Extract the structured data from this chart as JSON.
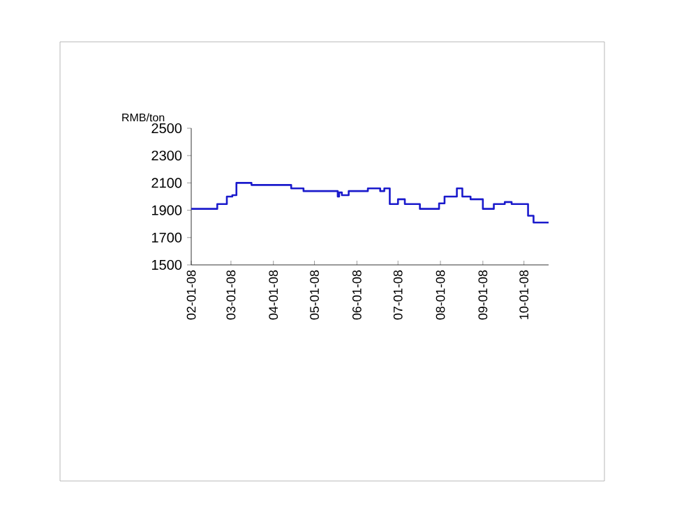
{
  "chart_data": {
    "type": "step",
    "ylabel": "RMB/ton",
    "x": [
      "2008-02-01",
      "2008-02-20",
      "2008-02-27",
      "2008-03-02",
      "2008-03-05",
      "2008-03-16",
      "2008-04-14",
      "2008-04-23",
      "2008-05-18",
      "2008-05-19",
      "2008-05-21",
      "2008-05-26",
      "2008-06-09",
      "2008-06-18",
      "2008-06-21",
      "2008-06-25",
      "2008-07-01",
      "2008-07-06",
      "2008-07-17",
      "2008-07-31",
      "2008-08-04",
      "2008-08-13",
      "2008-08-17",
      "2008-08-23",
      "2008-09-01",
      "2008-09-09",
      "2008-09-17",
      "2008-09-22",
      "2008-10-04",
      "2008-10-08",
      "2008-10-19"
    ],
    "series": [
      {
        "color": "#1a1acc",
        "values": [
          1910,
          1945,
          2000,
          2010,
          2100,
          2085,
          2060,
          2040,
          2000,
          2030,
          2010,
          2040,
          2060,
          2040,
          2060,
          1945,
          1980,
          1945,
          1910,
          1950,
          2000,
          2060,
          2000,
          1980,
          1910,
          1945,
          1960,
          1945,
          1860,
          1810,
          1810
        ]
      }
    ],
    "xlim": [
      "2008-02-01",
      "2008-10-19"
    ],
    "xticks": [
      {
        "value": "2008-02-01",
        "label": "02-01-08"
      },
      {
        "value": "2008-03-01",
        "label": "03-01-08"
      },
      {
        "value": "2008-04-01",
        "label": "04-01-08"
      },
      {
        "value": "2008-05-01",
        "label": "05-01-08"
      },
      {
        "value": "2008-06-01",
        "label": "06-01-08"
      },
      {
        "value": "2008-07-01",
        "label": "07-01-08"
      },
      {
        "value": "2008-08-01",
        "label": "08-01-08"
      },
      {
        "value": "2008-09-01",
        "label": "09-01-08"
      },
      {
        "value": "2008-10-01",
        "label": "10-01-08"
      }
    ],
    "ylim": [
      1500,
      2500
    ],
    "yticks": [
      1500,
      1700,
      1900,
      2100,
      2300,
      2500
    ]
  }
}
